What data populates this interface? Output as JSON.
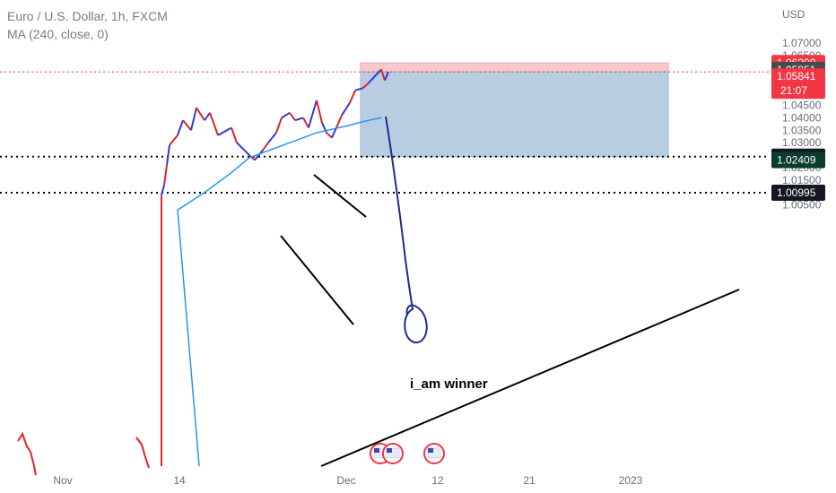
{
  "legend": {
    "symbol": "Euro / U.S. Dollar, 1h, FXCM",
    "indicator": "MA (240, close, 0)"
  },
  "chart_data": {
    "type": "line",
    "currency": "USD",
    "y_ticks": [
      "1.07000",
      "1.06500",
      "1.06000",
      "1.05500",
      "1.05000",
      "1.04500",
      "1.04000",
      "1.03500",
      "1.03000",
      "1.02500",
      "1.02000",
      "1.01500",
      "1.01000",
      "1.00500"
    ],
    "x_ticks": [
      "Nov",
      "14",
      "Dec",
      "12",
      "21",
      "2023"
    ],
    "ylim": [
      1.0035,
      1.073
    ],
    "price_series": [
      {
        "d": "Nov 11",
        "v": 1.009
      },
      {
        "d": "Nov 11",
        "v": 1.013
      },
      {
        "d": "Nov 11",
        "v": 1.021
      },
      {
        "d": "Nov 11",
        "v": 1.029
      },
      {
        "d": "Nov 14",
        "v": 1.033
      },
      {
        "d": "Nov 14",
        "v": 1.039
      },
      {
        "d": "Nov 15",
        "v": 1.035
      },
      {
        "d": "Nov 15",
        "v": 1.044
      },
      {
        "d": "Nov 16",
        "v": 1.039
      },
      {
        "d": "Nov 16",
        "v": 1.042
      },
      {
        "d": "Nov 17",
        "v": 1.033
      },
      {
        "d": "Nov 18",
        "v": 1.036
      },
      {
        "d": "Nov 18",
        "v": 1.03
      },
      {
        "d": "Nov 21",
        "v": 1.025
      },
      {
        "d": "Nov 21",
        "v": 1.023
      },
      {
        "d": "Nov 22",
        "v": 1.027
      },
      {
        "d": "Nov 22",
        "v": 1.03
      },
      {
        "d": "Nov 23",
        "v": 1.034
      },
      {
        "d": "Nov 23",
        "v": 1.04
      },
      {
        "d": "Nov 24",
        "v": 1.042
      },
      {
        "d": "Nov 24",
        "v": 1.039
      },
      {
        "d": "Nov 25",
        "v": 1.04
      },
      {
        "d": "Nov 25",
        "v": 1.036
      },
      {
        "d": "Nov 28",
        "v": 1.047
      },
      {
        "d": "Nov 28",
        "v": 1.038
      },
      {
        "d": "Nov 29",
        "v": 1.034
      },
      {
        "d": "Nov 29",
        "v": 1.032
      },
      {
        "d": "Nov 30",
        "v": 1.036
      },
      {
        "d": "Nov 30",
        "v": 1.041
      },
      {
        "d": "Dec 1",
        "v": 1.046
      },
      {
        "d": "Dec 1",
        "v": 1.051
      },
      {
        "d": "Dec 2",
        "v": 1.052
      },
      {
        "d": "Dec 2",
        "v": 1.054
      },
      {
        "d": "Dec 5",
        "v": 1.0594
      },
      {
        "d": "Dec 5",
        "v": 1.055
      },
      {
        "d": "Dec 5",
        "v": 1.0584
      }
    ],
    "ma_series": [
      {
        "d": "Nov 14",
        "v": 1.003
      },
      {
        "d": "Nov 16",
        "v": 1.01
      },
      {
        "d": "Nov 18",
        "v": 1.018
      },
      {
        "d": "Nov 21",
        "v": 1.024
      },
      {
        "d": "Nov 24",
        "v": 1.03
      },
      {
        "d": "Nov 28",
        "v": 1.034
      },
      {
        "d": "Dec 1",
        "v": 1.037
      },
      {
        "d": "Dec 2",
        "v": 1.0385
      },
      {
        "d": "Dec 5",
        "v": 1.04
      }
    ],
    "position": {
      "target": 1.062,
      "entry": 1.05841,
      "stop": 1.02439
    },
    "levels": [
      1.02439,
      1.00995
    ],
    "price_tags": [
      {
        "label": "1.06200",
        "color": "#f23645"
      },
      {
        "label": "1.05851",
        "color": "#4a4a4a"
      },
      {
        "label": "1.05841",
        "sub": "21:07",
        "color": "#f23645"
      },
      {
        "label": "1.02439",
        "color": "#131722"
      },
      {
        "label": "1.02409",
        "color": "#0b3d2e"
      },
      {
        "label": "1.00995",
        "color": "#131722"
      }
    ],
    "annotation": "i_am winner"
  }
}
